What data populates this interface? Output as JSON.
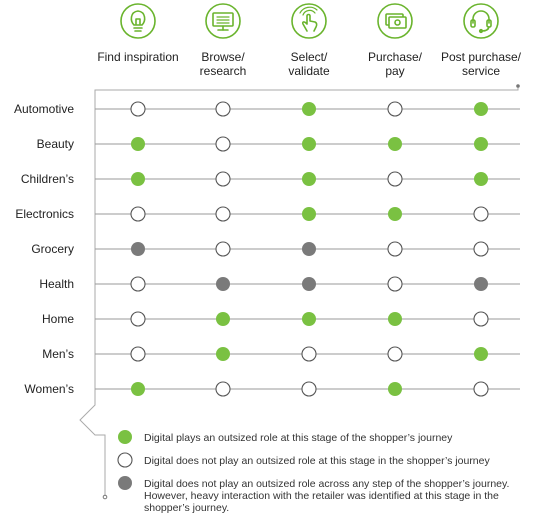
{
  "chart_data": {
    "type": "table",
    "stages": [
      {
        "label_lines": [
          "Find inspiration"
        ],
        "icon": "lightbulb-icon"
      },
      {
        "label_lines": [
          "Browse/",
          "research"
        ],
        "icon": "monitor-icon"
      },
      {
        "label_lines": [
          "Select/",
          "validate"
        ],
        "icon": "touch-hand-icon"
      },
      {
        "label_lines": [
          "Purchase/",
          "pay"
        ],
        "icon": "cash-icon"
      },
      {
        "label_lines": [
          "Post purchase/",
          "service"
        ],
        "icon": "headset-icon"
      }
    ],
    "categories": [
      "Automotive",
      "Beauty",
      "Children’s",
      "Electronics",
      "Grocery",
      "Health",
      "Home",
      "Men’s",
      "Women’s"
    ],
    "status_matrix": [
      [
        "empty",
        "empty",
        "green",
        "empty",
        "green"
      ],
      [
        "green",
        "empty",
        "green",
        "green",
        "green"
      ],
      [
        "green",
        "empty",
        "green",
        "empty",
        "green"
      ],
      [
        "empty",
        "empty",
        "green",
        "green",
        "empty"
      ],
      [
        "gray",
        "empty",
        "gray",
        "empty",
        "empty"
      ],
      [
        "empty",
        "gray",
        "gray",
        "empty",
        "gray"
      ],
      [
        "empty",
        "green",
        "green",
        "green",
        "empty"
      ],
      [
        "empty",
        "green",
        "empty",
        "empty",
        "green"
      ],
      [
        "green",
        "empty",
        "empty",
        "green",
        "empty"
      ]
    ],
    "legend": [
      {
        "status": "green",
        "lines": [
          "Digital plays an outsized role at this stage of the shopper’s journey"
        ]
      },
      {
        "status": "empty",
        "lines": [
          "Digital does not play an outsized role at this stage in the shopper’s journey"
        ]
      },
      {
        "status": "gray",
        "lines": [
          "Digital does not play an outsized role across any step of the shopper’s journey.",
          "However, heavy interaction with the retailer was identified at this stage in the",
          "shopper’s journey."
        ]
      }
    ]
  },
  "colors": {
    "green": "#7ac142",
    "gray": "#7a7a7a",
    "empty_stroke": "#555555",
    "grid_line": "#9a9a9a",
    "icon_green": "#6ab42d"
  }
}
